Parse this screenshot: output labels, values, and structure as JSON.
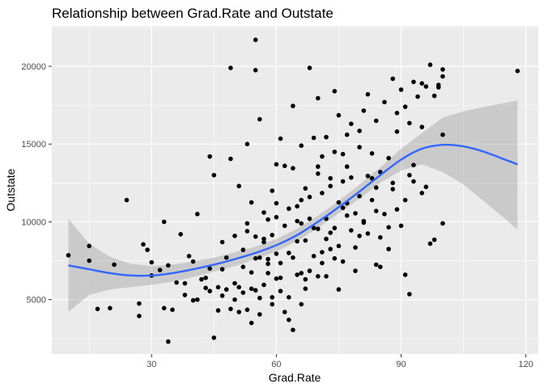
{
  "chart_data": {
    "type": "scatter",
    "title": "Relationship between Grad.Rate and Outstate",
    "xlabel": "Grad.Rate",
    "ylabel": "Outstate",
    "xlim": [
      6,
      123
    ],
    "ylim": [
      1500,
      22600
    ],
    "x_ticks": [
      30,
      60,
      90,
      120
    ],
    "x_tick_labels": [
      "30",
      "60",
      "90",
      "120"
    ],
    "y_ticks": [
      5000,
      10000,
      15000,
      20000
    ],
    "y_tick_labels": [
      "5000",
      "10000",
      "15000",
      "20000"
    ],
    "grid": true,
    "background": "#ebebeb",
    "point_color": "#000000",
    "smooth_color": "#3366ff",
    "band_color": "#999999",
    "series": [
      {
        "kind": "points",
        "x": [
          10,
          15,
          15,
          17,
          20,
          21,
          24,
          27,
          27,
          28,
          29,
          30,
          30,
          32,
          33,
          33,
          34,
          34,
          35,
          36,
          37,
          38,
          38,
          39,
          40,
          40,
          41,
          41,
          42,
          43,
          43,
          44,
          44,
          44,
          45,
          45,
          46,
          46,
          47,
          47,
          48,
          48,
          49,
          49,
          50,
          50,
          50,
          51,
          51,
          51,
          52,
          52,
          52,
          53,
          53,
          53,
          54,
          54,
          54,
          54,
          55,
          55,
          55,
          56,
          56,
          56,
          56,
          57,
          57,
          57,
          58,
          58,
          58,
          59,
          59,
          59,
          60,
          60,
          60,
          60,
          61,
          61,
          61,
          62,
          62,
          62,
          63,
          63,
          63,
          64,
          64,
          64,
          64,
          65,
          65,
          65,
          66,
          66,
          66,
          66,
          67,
          67,
          67,
          68,
          68,
          68,
          69,
          69,
          69,
          70,
          70,
          70,
          70,
          71,
          71,
          71,
          72,
          72,
          72,
          73,
          73,
          73,
          74,
          74,
          74,
          75,
          75,
          75,
          76,
          76,
          76,
          77,
          77,
          77,
          78,
          78,
          78,
          79,
          79,
          80,
          80,
          80,
          81,
          81,
          82,
          82,
          82,
          83,
          83,
          84,
          84,
          84,
          85,
          85,
          86,
          86,
          87,
          87,
          88,
          88,
          89,
          89,
          90,
          90,
          91,
          91,
          92,
          92,
          93,
          93,
          94,
          95,
          95,
          96,
          97,
          98,
          99,
          100,
          100,
          118,
          47,
          49,
          53,
          55,
          57,
          59,
          61,
          63,
          65,
          66,
          68,
          70,
          72,
          74,
          75,
          77,
          79,
          81,
          83,
          85,
          87,
          89,
          91,
          93,
          95,
          97,
          98,
          99,
          100,
          55,
          58,
          60,
          67,
          71,
          73,
          76,
          80,
          84,
          88,
          92,
          96,
          100
        ],
        "y": [
          7850,
          8450,
          7500,
          4400,
          4450,
          7250,
          11400,
          4750,
          3950,
          8550,
          8200,
          7400,
          6550,
          6900,
          10000,
          4450,
          2300,
          7200,
          4350,
          6100,
          9200,
          5300,
          6050,
          7800,
          7450,
          4950,
          5000,
          10500,
          6300,
          6400,
          5750,
          14200,
          7000,
          5550,
          13000,
          2550,
          4300,
          5800,
          8700,
          6950,
          5650,
          7700,
          14050,
          4400,
          9100,
          6050,
          5000,
          12300,
          5800,
          4200,
          8200,
          7100,
          5450,
          15000,
          9900,
          4350,
          11250,
          6750,
          5700,
          3500,
          21700,
          7650,
          9050,
          16600,
          7700,
          5100,
          4050,
          10600,
          5950,
          8900,
          10150,
          7600,
          6700,
          12000,
          9150,
          5150,
          6350,
          13700,
          7950,
          11200,
          5550,
          15350,
          7350,
          4200,
          9750,
          13600,
          8000,
          5150,
          10850,
          17450,
          7700,
          13450,
          3050,
          6600,
          10050,
          8750,
          14900,
          11400,
          9900,
          6700,
          12150,
          8800,
          5700,
          19900,
          10200,
          11600,
          7800,
          15400,
          9600,
          6500,
          17950,
          13100,
          9550,
          7350,
          14200,
          11850,
          6500,
          10200,
          15450,
          8250,
          9300,
          12300,
          18400,
          14500,
          9600,
          16850,
          11250,
          8450,
          12600,
          10900,
          7450,
          15600,
          13550,
          11200,
          9450,
          16300,
          12850,
          8350,
          10550,
          14800,
          11650,
          9100,
          17150,
          9950,
          12950,
          18200,
          9250,
          11400,
          14400,
          16500,
          10700,
          12200,
          9000,
          13200,
          17700,
          10500,
          14100,
          8250,
          19200,
          12500,
          15800,
          10800,
          18500,
          9750,
          17400,
          11400,
          13000,
          5350,
          19000,
          12600,
          18050,
          16100,
          18900,
          12250,
          20100,
          8850,
          18650,
          19350,
          15600,
          19700,
          5250,
          19900,
          9400,
          5600,
          8700,
          4700,
          6400,
          3700,
          11000,
          4700,
          6850,
          13550,
          8900,
          7650,
          5650,
          10400,
          6850,
          10050,
          12800,
          7100,
          9650,
          17000,
          6600,
          13650,
          11850,
          8600,
          18100,
          18800,
          9900,
          19750,
          7300,
          10300,
          6300,
          8050,
          12800,
          14350,
          15850,
          7250,
          12100,
          16350,
          18700,
          19800
        ]
      },
      {
        "kind": "smooth",
        "x": [
          10,
          15,
          20,
          25,
          30,
          35,
          40,
          45,
          50,
          55,
          60,
          65,
          70,
          75,
          80,
          85,
          90,
          95,
          100,
          105,
          110,
          115,
          118
        ],
        "y": [
          7200,
          6950,
          6700,
          6550,
          6550,
          6700,
          6950,
          7250,
          7600,
          8000,
          8500,
          9150,
          10000,
          10950,
          11950,
          13000,
          14000,
          14700,
          14950,
          14850,
          14500,
          14000,
          13700
        ]
      },
      {
        "kind": "confidence-band",
        "x": [
          10,
          15,
          20,
          25,
          30,
          35,
          40,
          45,
          50,
          55,
          60,
          65,
          70,
          75,
          80,
          85,
          90,
          95,
          100,
          105,
          110,
          115,
          118
        ],
        "lower": [
          4200,
          5300,
          5650,
          5800,
          5950,
          6150,
          6450,
          6800,
          7150,
          7600,
          8100,
          8750,
          9600,
          10550,
          11500,
          12500,
          13300,
          13700,
          13200,
          12400,
          11300,
          10200,
          9500
        ],
        "upper": [
          10200,
          8600,
          7750,
          7300,
          7150,
          7250,
          7450,
          7700,
          8050,
          8400,
          8900,
          9550,
          10400,
          11350,
          12400,
          13500,
          14700,
          15700,
          16700,
          17100,
          17400,
          17650,
          17800
        ]
      }
    ]
  }
}
